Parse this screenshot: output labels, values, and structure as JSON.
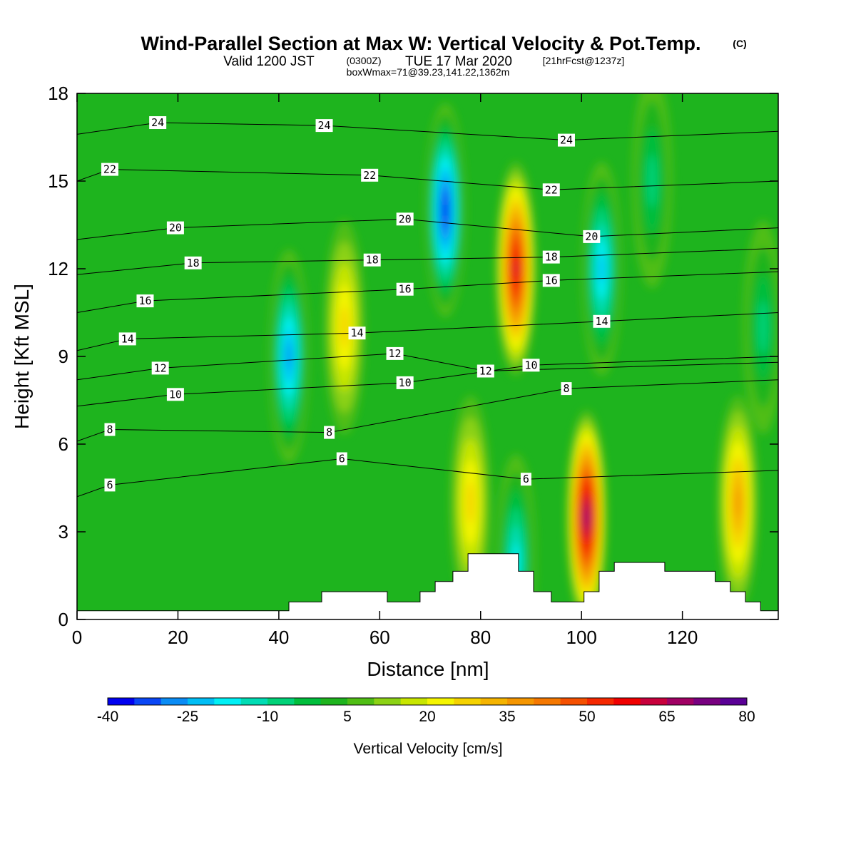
{
  "title": {
    "main": "Wind-Parallel Section at Max W: Vertical Velocity & Pot.Temp.",
    "copyright": "(C)",
    "valid_a": "Valid 1200 JST",
    "valid_b": "(0300Z)",
    "valid_c": "TUE 17 Mar 2020",
    "valid_d": "[21hrFcst@1237z]",
    "box": "boxWmax=71@39.23,141.22,1362m"
  },
  "chart_data": {
    "type": "heatmap",
    "xlabel": "Distance [nm]",
    "ylabel": "Height [Kft MSL]",
    "xlim": [
      0,
      139
    ],
    "ylim": [
      0,
      18
    ],
    "x_ticks": [
      "0",
      "20",
      "40",
      "60",
      "80",
      "100",
      "120"
    ],
    "y_ticks": [
      "0",
      "3",
      "6",
      "9",
      "12",
      "15",
      "18"
    ],
    "colorbar": {
      "label": "Vertical Velocity [cm/s]",
      "tick_labels": [
        "-40",
        "-25",
        "-10",
        "5",
        "20",
        "35",
        "50",
        "65",
        "80"
      ],
      "levels": [
        -40,
        -35,
        -30,
        -25,
        -20,
        -15,
        -10,
        -5,
        0,
        5,
        10,
        15,
        20,
        25,
        30,
        35,
        40,
        45,
        50,
        55,
        60,
        65,
        70,
        75,
        80
      ],
      "colors": [
        "#0000f0",
        "#0a46f5",
        "#0a8cf5",
        "#00bef5",
        "#00f0f5",
        "#00dcb4",
        "#00d278",
        "#00be3c",
        "#1eb41e",
        "#50be14",
        "#8cd214",
        "#c8e600",
        "#f5f500",
        "#f5d200",
        "#f5b400",
        "#f59600",
        "#f57800",
        "#f55000",
        "#f52800",
        "#f00000",
        "#c8003c",
        "#a00064",
        "#780080",
        "#5a0096"
      ]
    },
    "vertical_velocity_cells": [
      {
        "x": 42,
        "z": 9,
        "w": -32
      },
      {
        "x": 53,
        "z": 10,
        "w": 26
      },
      {
        "x": 73,
        "z": 14,
        "w": -40
      },
      {
        "x": 87,
        "z": 12,
        "w": 62
      },
      {
        "x": 104,
        "z": 12,
        "w": -28
      },
      {
        "x": 101,
        "z": 3.5,
        "w": 71
      },
      {
        "x": 78,
        "z": 4,
        "w": 28
      },
      {
        "x": 87,
        "z": 2,
        "w": -20
      },
      {
        "x": 131,
        "z": 4,
        "w": 36
      },
      {
        "x": 114,
        "z": 15,
        "w": -12
      },
      {
        "x": 136,
        "z": 10,
        "w": -10
      }
    ],
    "theta_contour_labels": [
      {
        "text": "24",
        "x": 16,
        "z": 17
      },
      {
        "text": "24",
        "x": 49,
        "z": 16.9
      },
      {
        "text": "24",
        "x": 97,
        "z": 16.4
      },
      {
        "text": "22",
        "x": 6.5,
        "z": 15.4
      },
      {
        "text": "22",
        "x": 58,
        "z": 15.2
      },
      {
        "text": "22",
        "x": 94,
        "z": 14.7
      },
      {
        "text": "20",
        "x": 19.5,
        "z": 13.4
      },
      {
        "text": "20",
        "x": 65,
        "z": 13.7
      },
      {
        "text": "20",
        "x": 102,
        "z": 13.1
      },
      {
        "text": "18",
        "x": 23,
        "z": 12.2
      },
      {
        "text": "18",
        "x": 58.5,
        "z": 12.3
      },
      {
        "text": "18",
        "x": 94,
        "z": 12.4
      },
      {
        "text": "16",
        "x": 13.5,
        "z": 10.9
      },
      {
        "text": "16",
        "x": 65,
        "z": 11.3
      },
      {
        "text": "16",
        "x": 94,
        "z": 11.6
      },
      {
        "text": "14",
        "x": 10,
        "z": 9.6
      },
      {
        "text": "14",
        "x": 55.5,
        "z": 9.8
      },
      {
        "text": "14",
        "x": 104,
        "z": 10.2
      },
      {
        "text": "12",
        "x": 16.5,
        "z": 8.6
      },
      {
        "text": "12",
        "x": 63,
        "z": 9.1
      },
      {
        "text": "12",
        "x": 81,
        "z": 8.5
      },
      {
        "text": "10",
        "x": 19.5,
        "z": 7.7
      },
      {
        "text": "10",
        "x": 65,
        "z": 8.1
      },
      {
        "text": "10",
        "x": 90,
        "z": 8.7
      },
      {
        "text": "8",
        "x": 6.5,
        "z": 6.5
      },
      {
        "text": "8",
        "x": 50,
        "z": 6.4
      },
      {
        "text": "8",
        "x": 97,
        "z": 7.9
      },
      {
        "text": "6",
        "x": 6.5,
        "z": 4.6
      },
      {
        "text": "6",
        "x": 52.5,
        "z": 5.5
      },
      {
        "text": "6",
        "x": 89,
        "z": 4.8
      }
    ],
    "terrain": [
      {
        "x": 0,
        "z": 0.3
      },
      {
        "x": 42,
        "z": 0.3
      },
      {
        "x": 42,
        "z": 0.6
      },
      {
        "x": 48.5,
        "z": 0.6
      },
      {
        "x": 48.5,
        "z": 0.95
      },
      {
        "x": 61.5,
        "z": 0.95
      },
      {
        "x": 61.5,
        "z": 0.6
      },
      {
        "x": 68,
        "z": 0.6
      },
      {
        "x": 68,
        "z": 0.95
      },
      {
        "x": 71,
        "z": 0.95
      },
      {
        "x": 71,
        "z": 1.3
      },
      {
        "x": 74.5,
        "z": 1.3
      },
      {
        "x": 74.5,
        "z": 1.65
      },
      {
        "x": 77.5,
        "z": 1.65
      },
      {
        "x": 77.5,
        "z": 2.25
      },
      {
        "x": 87.5,
        "z": 2.25
      },
      {
        "x": 87.5,
        "z": 1.65
      },
      {
        "x": 90.5,
        "z": 1.65
      },
      {
        "x": 90.5,
        "z": 0.95
      },
      {
        "x": 94,
        "z": 0.95
      },
      {
        "x": 94,
        "z": 0.6
      },
      {
        "x": 100.5,
        "z": 0.6
      },
      {
        "x": 100.5,
        "z": 0.95
      },
      {
        "x": 103.5,
        "z": 0.95
      },
      {
        "x": 103.5,
        "z": 1.65
      },
      {
        "x": 106.5,
        "z": 1.65
      },
      {
        "x": 106.5,
        "z": 1.95
      },
      {
        "x": 116.5,
        "z": 1.95
      },
      {
        "x": 116.5,
        "z": 1.65
      },
      {
        "x": 126.5,
        "z": 1.65
      },
      {
        "x": 126.5,
        "z": 1.3
      },
      {
        "x": 129.5,
        "z": 1.3
      },
      {
        "x": 129.5,
        "z": 0.95
      },
      {
        "x": 132.5,
        "z": 0.95
      },
      {
        "x": 132.5,
        "z": 0.6
      },
      {
        "x": 135.5,
        "z": 0.6
      },
      {
        "x": 135.5,
        "z": 0.3
      },
      {
        "x": 139,
        "z": 0.3
      }
    ]
  }
}
